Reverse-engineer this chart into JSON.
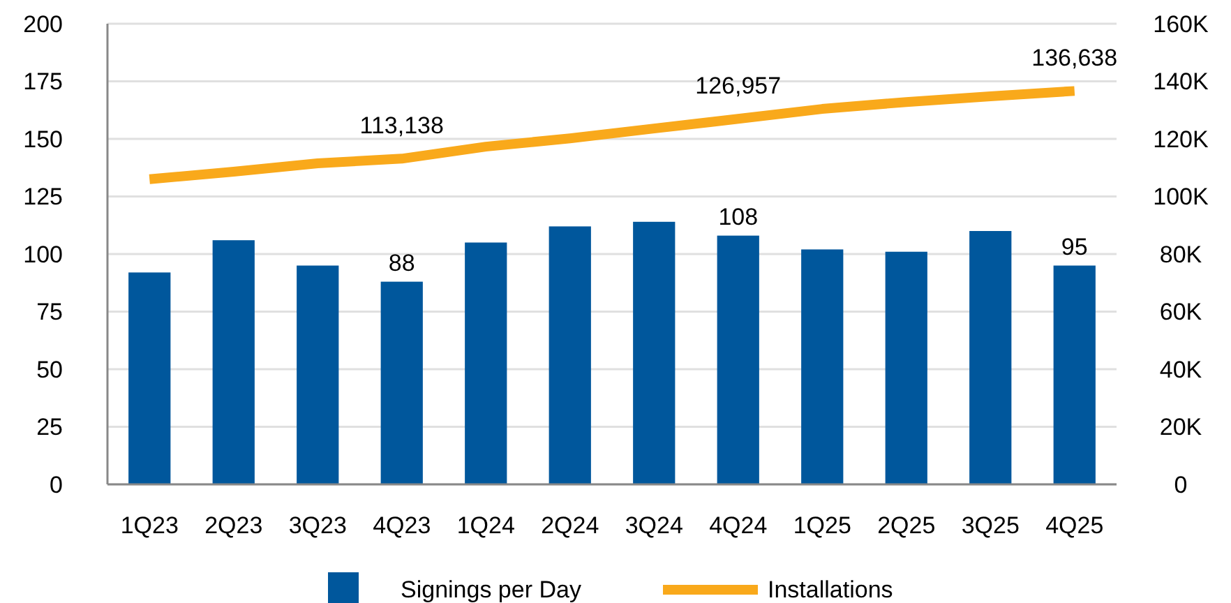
{
  "chart_data": {
    "type": "bar",
    "categories": [
      "1Q23",
      "2Q23",
      "3Q23",
      "4Q23",
      "1Q24",
      "2Q24",
      "3Q24",
      "4Q24",
      "1Q25",
      "2Q25",
      "3Q25",
      "4Q25"
    ],
    "series": [
      {
        "name": "Signings per Day",
        "color": "#00579c",
        "values": [
          92,
          106,
          95,
          88,
          105,
          112,
          114,
          108,
          102,
          101,
          110,
          95
        ],
        "value_labels": [
          null,
          null,
          null,
          "88",
          null,
          null,
          null,
          "108",
          null,
          null,
          null,
          "95"
        ]
      },
      {
        "name": "Installations",
        "type": "line",
        "axis": "y2",
        "color": "#f9a91b",
        "values": [
          106000,
          108600,
          111500,
          113138,
          117300,
          120200,
          123600,
          126957,
          130400,
          132800,
          134800,
          136638
        ],
        "value_labels": [
          null,
          null,
          null,
          "113,138",
          null,
          null,
          null,
          "126,957",
          null,
          null,
          null,
          "136,638"
        ]
      }
    ],
    "ylim": [
      0,
      200
    ],
    "yticks": [
      0,
      25,
      50,
      75,
      100,
      125,
      150,
      175,
      200
    ],
    "y2lim": [
      0,
      160000
    ],
    "y2ticks": [
      {
        "value": 0,
        "label": "0"
      },
      {
        "value": 20000,
        "label": "20K"
      },
      {
        "value": 40000,
        "label": "40K"
      },
      {
        "value": 60000,
        "label": "60K"
      },
      {
        "value": 80000,
        "label": "80K"
      },
      {
        "value": 100000,
        "label": "100K"
      },
      {
        "value": 120000,
        "label": "120K"
      },
      {
        "value": 140000,
        "label": "140K"
      },
      {
        "value": 160000,
        "label": "160K"
      }
    ],
    "grid": "y",
    "legend": "bottom"
  }
}
